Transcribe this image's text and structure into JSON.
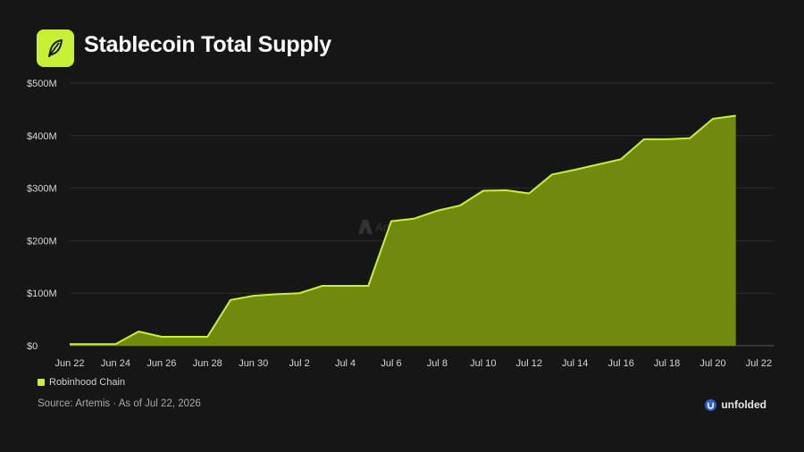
{
  "header": {
    "title": "Stablecoin Total Supply",
    "logo_icon": "feather-icon",
    "logo_color": "#c8f135"
  },
  "watermark": {
    "text": "Artemis",
    "icon": "artemis-logo-icon"
  },
  "legend": {
    "label": "Robinhood Chain",
    "color": "#c8f135"
  },
  "footer": {
    "source": "Source: Artemis · As of Jul 22, 2026",
    "brand": "unfolded",
    "brand_icon": "unfolded-logo-icon"
  },
  "chart_data": {
    "type": "area",
    "title": "Stablecoin Total Supply",
    "xlabel": "",
    "ylabel": "",
    "x_ticks": [
      "Jun 22",
      "Jun 24",
      "Jun 26",
      "Jun 28",
      "Jun 30",
      "Jul 2",
      "Jul 4",
      "Jul 6",
      "Jul 8",
      "Jul 10",
      "Jul 12",
      "Jul 14",
      "Jul 16",
      "Jul 18",
      "Jul 20",
      "Jul 22"
    ],
    "y_ticks": [
      "$0",
      "$100M",
      "$200M",
      "$300M",
      "$400M",
      "$500M"
    ],
    "ylim": [
      0,
      500
    ],
    "y_unit": "$M",
    "grid": true,
    "legend_position": "bottom-left",
    "fill_color": "#6f8a0c",
    "line_color": "#c8f135",
    "series": [
      {
        "name": "Robinhood Chain",
        "x": [
          "Jun 22",
          "Jun 23",
          "Jun 24",
          "Jun 25",
          "Jun 26",
          "Jun 27",
          "Jun 28",
          "Jun 29",
          "Jun 30",
          "Jul 1",
          "Jul 2",
          "Jul 3",
          "Jul 4",
          "Jul 5",
          "Jul 6",
          "Jul 7",
          "Jul 8",
          "Jul 9",
          "Jul 10",
          "Jul 11",
          "Jul 12",
          "Jul 13",
          "Jul 14",
          "Jul 15",
          "Jul 16",
          "Jul 17",
          "Jul 18",
          "Jul 19",
          "Jul 20",
          "Jul 21"
        ],
        "values": [
          3,
          3,
          3,
          27,
          17,
          17,
          17,
          87,
          95,
          98,
          100,
          114,
          114,
          114,
          237,
          242,
          257,
          267,
          295,
          296,
          290,
          326,
          335,
          345,
          355,
          393,
          393,
          395,
          432,
          438
        ]
      }
    ]
  }
}
